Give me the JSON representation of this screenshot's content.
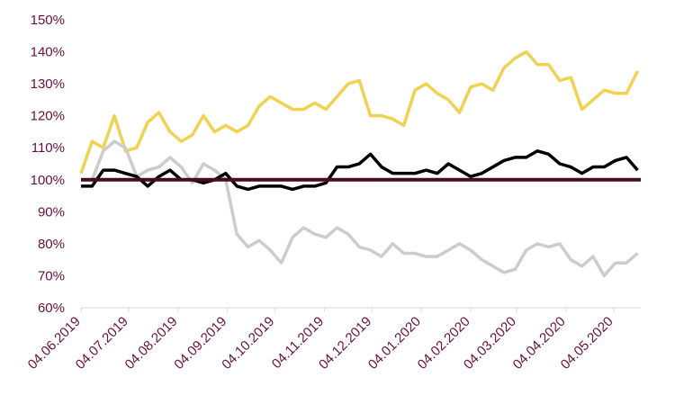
{
  "chart_data": {
    "type": "line",
    "x": [
      "04.06.2019",
      "11.06.2019",
      "18.06.2019",
      "25.06.2019",
      "02.07.2019",
      "09.07.2019",
      "16.07.2019",
      "23.07.2019",
      "30.07.2019",
      "06.08.2019",
      "13.08.2019",
      "20.08.2019",
      "27.08.2019",
      "03.09.2019",
      "10.09.2019",
      "17.09.2019",
      "24.09.2019",
      "01.10.2019",
      "08.10.2019",
      "15.10.2019",
      "22.10.2019",
      "29.10.2019",
      "05.11.2019",
      "12.11.2019",
      "19.11.2019",
      "26.11.2019",
      "03.12.2019",
      "10.12.2019",
      "17.12.2019",
      "24.12.2019",
      "31.12.2019",
      "07.01.2020",
      "14.01.2020",
      "21.01.2020",
      "28.01.2020",
      "04.02.2020",
      "11.02.2020",
      "18.02.2020",
      "25.02.2020",
      "03.03.2020",
      "10.03.2020",
      "17.03.2020",
      "24.03.2020",
      "31.03.2020",
      "07.04.2020",
      "14.04.2020",
      "21.04.2020",
      "28.04.2020",
      "05.05.2020",
      "12.05.2020",
      "19.05.2020"
    ],
    "series": [
      {
        "color": "#f0d253",
        "values": [
          102,
          112,
          110,
          120,
          109,
          110,
          118,
          121,
          115,
          112,
          114,
          120,
          115,
          117,
          115,
          117,
          123,
          126,
          124,
          122,
          122,
          124,
          122,
          126,
          130,
          131,
          120,
          120,
          119,
          117,
          128,
          130,
          127,
          125,
          121,
          129,
          130,
          128,
          135,
          138,
          140,
          136,
          136,
          131,
          132,
          122,
          125,
          128,
          127,
          127,
          134
        ]
      },
      {
        "color": "#cccccc",
        "values": [
          100,
          100,
          109,
          112,
          110,
          101,
          103,
          104,
          107,
          104,
          99,
          105,
          103,
          100,
          83,
          79,
          81,
          78,
          74,
          82,
          85,
          83,
          82,
          85,
          83,
          79,
          78,
          76,
          80,
          77,
          77,
          76,
          76,
          78,
          80,
          78,
          75,
          73,
          71,
          72,
          78,
          80,
          79,
          80,
          75,
          73,
          76,
          70,
          74,
          74,
          77
        ]
      },
      {
        "color": "#000000",
        "values": [
          98,
          98,
          103,
          103,
          102,
          101,
          98,
          101,
          103,
          100,
          100,
          99,
          100,
          102,
          98,
          97,
          98,
          98,
          98,
          97,
          98,
          98,
          99,
          104,
          104,
          105,
          108,
          104,
          102,
          102,
          102,
          103,
          102,
          105,
          103,
          101,
          102,
          104,
          106,
          107,
          107,
          109,
          108,
          105,
          104,
          102,
          104,
          104,
          106,
          107,
          103
        ]
      }
    ],
    "reference_line": {
      "value": 100,
      "color": "#4a0a26"
    },
    "xlim": [
      "04.06.2019",
      "21.05.2020"
    ],
    "xticks": [
      "04.06.2019",
      "04.07.2019",
      "04.08.2019",
      "04.09.2019",
      "04.10.2019",
      "04.11.2019",
      "04.12.2019",
      "04.01.2020",
      "04.02.2020",
      "04.03.2020",
      "04.04.2020",
      "04.05.2020"
    ],
    "ylim": [
      60,
      150
    ],
    "yticks": [
      {
        "value": 60,
        "label": "60%"
      },
      {
        "value": 70,
        "label": "70%"
      },
      {
        "value": 80,
        "label": "80%"
      },
      {
        "value": 90,
        "label": "90%"
      },
      {
        "value": 100,
        "label": "100%"
      },
      {
        "value": 110,
        "label": "110%"
      },
      {
        "value": 120,
        "label": "120%"
      },
      {
        "value": 130,
        "label": "130%"
      },
      {
        "value": 140,
        "label": "140%"
      },
      {
        "value": 150,
        "label": "150%"
      }
    ]
  }
}
